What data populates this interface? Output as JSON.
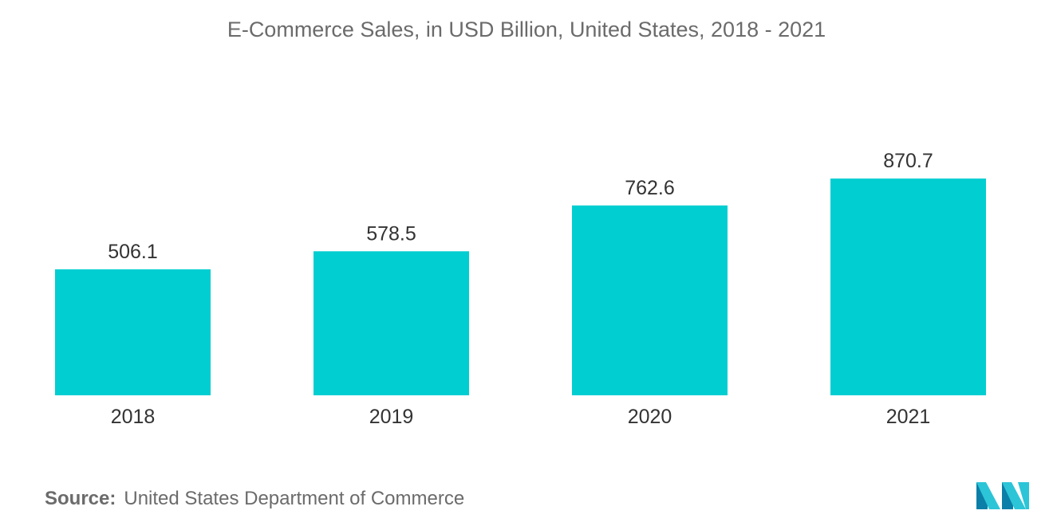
{
  "chart_data": {
    "type": "bar",
    "title": "E-Commerce Sales, in USD Billion, United States, 2018 - 2021",
    "categories": [
      "2018",
      "2019",
      "2020",
      "2021"
    ],
    "values": [
      506.1,
      578.5,
      762.6,
      870.7
    ],
    "value_labels": [
      "506.1",
      "578.5",
      "762.6",
      "870.7"
    ],
    "ylim": [
      0,
      870.7
    ],
    "grid": false,
    "legend": "none",
    "colors": {
      "bar": "#00ced1",
      "text": "#333333",
      "title": "#6b6b6b"
    }
  },
  "source": {
    "label": "Source:",
    "text": "United States Department of Commerce"
  },
  "logo": {
    "colors": [
      "#0b7fa8",
      "#2cc5d8"
    ]
  }
}
